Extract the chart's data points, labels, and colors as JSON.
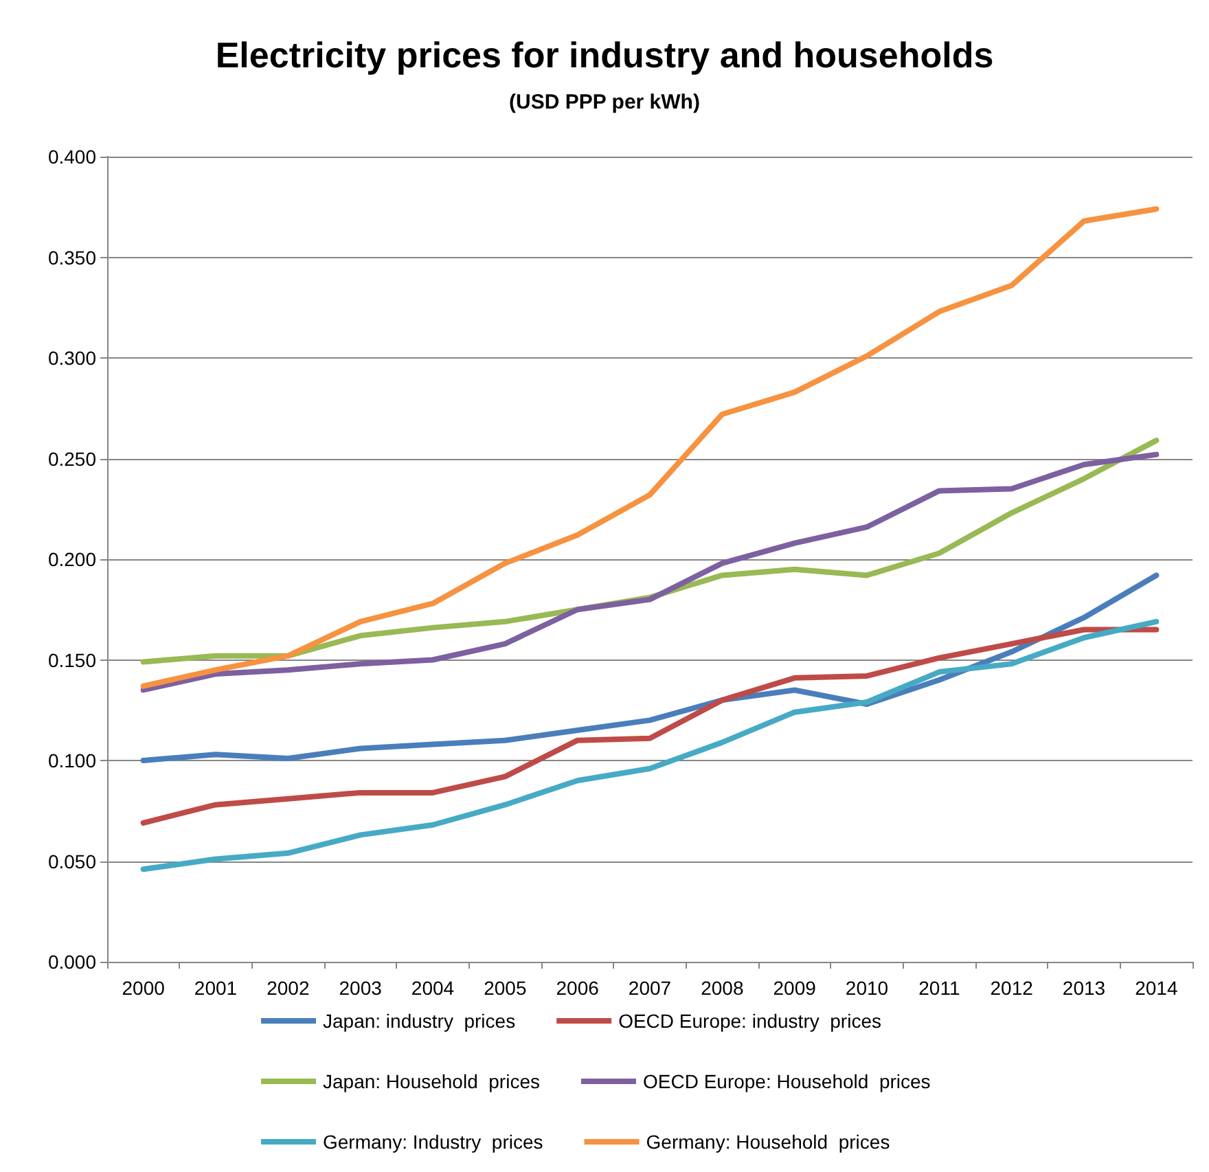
{
  "chart_data": {
    "type": "line",
    "title": "Electricity prices for industry and households",
    "subtitle": "(USD PPP per kWh)",
    "categories": [
      "2000",
      "2001",
      "2002",
      "2003",
      "2004",
      "2005",
      "2006",
      "2007",
      "2008",
      "2009",
      "2010",
      "2011",
      "2012",
      "2013",
      "2014"
    ],
    "series": [
      {
        "name": "Japan: industry  prices",
        "color": "#4a7ebb",
        "values": [
          0.1,
          0.103,
          0.101,
          0.106,
          0.108,
          0.11,
          0.115,
          0.12,
          0.13,
          0.135,
          0.128,
          0.14,
          0.154,
          0.171,
          0.192
        ]
      },
      {
        "name": "OECD Europe: industry  prices",
        "color": "#be4b48",
        "values": [
          0.069,
          0.078,
          0.081,
          0.084,
          0.084,
          0.092,
          0.11,
          0.111,
          0.13,
          0.141,
          0.142,
          0.151,
          0.158,
          0.165,
          0.165
        ]
      },
      {
        "name": "Japan: Household  prices",
        "color": "#98b954",
        "values": [
          0.149,
          0.152,
          0.152,
          0.162,
          0.166,
          0.169,
          0.175,
          0.181,
          0.192,
          0.195,
          0.192,
          0.203,
          0.223,
          0.24,
          0.259
        ]
      },
      {
        "name": "OECD Europe: Household  prices",
        "color": "#7d60a0",
        "values": [
          0.135,
          0.143,
          0.145,
          0.148,
          0.15,
          0.158,
          0.175,
          0.18,
          0.198,
          0.208,
          0.216,
          0.234,
          0.235,
          0.247,
          0.252
        ]
      },
      {
        "name": "Germany: Industry  prices",
        "color": "#46aac5",
        "values": [
          0.046,
          0.051,
          0.054,
          0.063,
          0.068,
          0.078,
          0.09,
          0.096,
          0.109,
          0.124,
          0.129,
          0.144,
          0.148,
          0.161,
          0.169
        ]
      },
      {
        "name": "Germany: Household  prices",
        "color": "#f69240",
        "values": [
          0.137,
          0.145,
          0.152,
          0.169,
          0.178,
          0.198,
          0.212,
          0.232,
          0.272,
          0.283,
          0.301,
          0.323,
          0.336,
          0.368,
          0.374
        ]
      }
    ],
    "ylim": [
      0,
      0.4
    ],
    "yticks": [
      {
        "value": 0,
        "label": "0.000"
      },
      {
        "value": 0.05,
        "label": "0.050"
      },
      {
        "value": 0.1,
        "label": "0.100"
      },
      {
        "value": 0.15,
        "label": "0.150"
      },
      {
        "value": 0.2,
        "label": "0.200"
      },
      {
        "value": 0.25,
        "label": "0.250"
      },
      {
        "value": 0.3,
        "label": "0.300"
      },
      {
        "value": 0.35,
        "label": "0.350"
      },
      {
        "value": 0.4,
        "label": "0.400"
      }
    ],
    "grid": "y",
    "legend": "bottom",
    "marker": "none",
    "line_style": "solid"
  }
}
